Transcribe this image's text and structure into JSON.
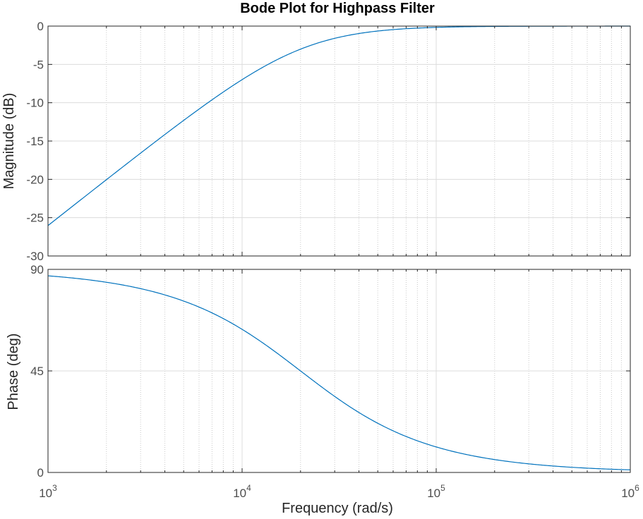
{
  "chart_data": {
    "type": "line",
    "title": "Bode Plot for Highpass Filter",
    "xlabel": "Frequency  (rad/s)",
    "xscale": "log",
    "xlim": [
      1000,
      1000000
    ],
    "x_ticks": [
      {
        "base": "10",
        "exp": "3"
      },
      {
        "base": "10",
        "exp": "4"
      },
      {
        "base": "10",
        "exp": "5"
      },
      {
        "base": "10",
        "exp": "6"
      }
    ],
    "grid": true,
    "line_color": "#0072bd",
    "axes_color": "#262626",
    "grid_color": "#dcdcdc",
    "minor_grid_color": "#c8c8c8",
    "filter": {
      "type": "first-order highpass",
      "cutoff_rad_s": 20000
    },
    "subplots": [
      {
        "name": "magnitude",
        "ylabel": "Magnitude (dB)",
        "ylim": [
          -30,
          0
        ],
        "y_ticks": [
          "0",
          "-5",
          "-10",
          "-15",
          "-20",
          "-25",
          "-30"
        ],
        "y_tick_values": [
          0,
          -5,
          -10,
          -15,
          -20,
          -25,
          -30
        ],
        "x": [
          1000,
          2000,
          5000,
          10000,
          20000,
          50000,
          100000,
          200000,
          1000000
        ],
        "y": [
          -26.0,
          -20.0,
          -12.3,
          -7.0,
          -3.0,
          -0.6,
          -0.17,
          -0.04,
          0
        ]
      },
      {
        "name": "phase",
        "ylabel": "Phase (deg)",
        "ylim": [
          0,
          90
        ],
        "y_ticks": [
          "90",
          "45",
          "0"
        ],
        "y_tick_values": [
          90,
          45,
          0
        ],
        "x": [
          1000,
          2000,
          5000,
          10000,
          20000,
          50000,
          100000,
          200000,
          1000000
        ],
        "y": [
          87.1,
          84.3,
          76.0,
          63.4,
          45.0,
          21.8,
          11.3,
          5.7,
          1.1
        ]
      }
    ]
  }
}
